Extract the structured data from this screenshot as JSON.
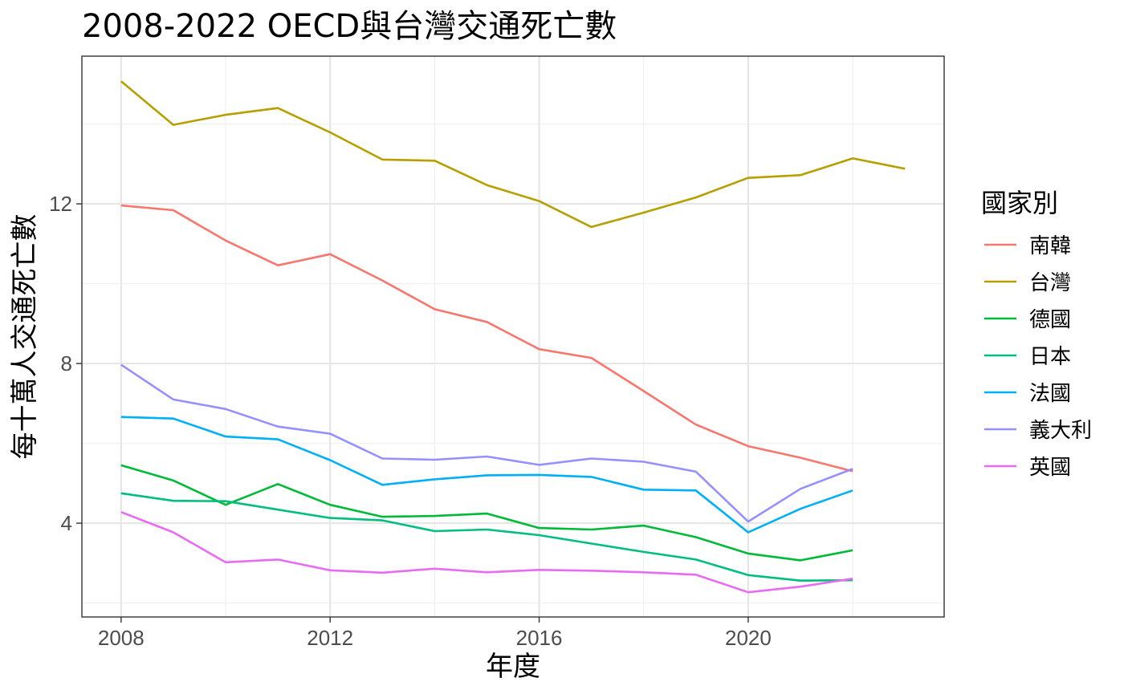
{
  "chart_data": {
    "type": "line",
    "title": "2008-2022 OECD與台灣交通死亡數",
    "xlabel": "年度",
    "ylabel": "每十萬人交通死亡數",
    "xlim": [
      2007.25,
      2023.75
    ],
    "ylim": [
      1.65,
      15.7
    ],
    "x_ticks": [
      2008,
      2012,
      2016,
      2020
    ],
    "y_ticks": [
      4,
      8,
      12
    ],
    "grid": true,
    "legend_title": "國家別",
    "legend_position": "right",
    "series": [
      {
        "name": "南韓",
        "color": "#F8766D",
        "x": [
          2008,
          2009,
          2010,
          2011,
          2012,
          2013,
          2014,
          2015,
          2016,
          2017,
          2018,
          2019,
          2020,
          2021,
          2022
        ],
        "y": [
          11.96,
          11.84,
          11.08,
          10.46,
          10.74,
          10.08,
          9.36,
          9.04,
          8.36,
          8.14,
          7.31,
          6.47,
          5.93,
          5.64,
          5.3
        ]
      },
      {
        "name": "台灣",
        "color": "#B79F00",
        "x": [
          2008,
          2009,
          2010,
          2011,
          2012,
          2013,
          2014,
          2015,
          2016,
          2017,
          2018,
          2019,
          2020,
          2021,
          2022,
          2023
        ],
        "y": [
          15.07,
          13.98,
          14.23,
          14.4,
          13.79,
          13.11,
          13.08,
          12.47,
          12.07,
          11.42,
          11.78,
          12.16,
          12.65,
          12.72,
          13.14,
          12.88
        ]
      },
      {
        "name": "德國",
        "color": "#00BA38",
        "x": [
          2008,
          2009,
          2010,
          2011,
          2012,
          2013,
          2014,
          2015,
          2016,
          2017,
          2018,
          2019,
          2020,
          2021,
          2022
        ],
        "y": [
          5.45,
          5.07,
          4.46,
          4.98,
          4.46,
          4.16,
          4.18,
          4.24,
          3.88,
          3.84,
          3.94,
          3.65,
          3.24,
          3.07,
          3.32
        ]
      },
      {
        "name": "日本",
        "color": "#00BF7D",
        "x": [
          2008,
          2009,
          2010,
          2011,
          2012,
          2013,
          2014,
          2015,
          2016,
          2017,
          2018,
          2019,
          2020,
          2021,
          2022
        ],
        "y": [
          4.75,
          4.56,
          4.55,
          4.34,
          4.13,
          4.07,
          3.8,
          3.84,
          3.7,
          3.49,
          3.28,
          3.09,
          2.7,
          2.56,
          2.57
        ]
      },
      {
        "name": "法國",
        "color": "#00B0F6",
        "x": [
          2008,
          2009,
          2010,
          2011,
          2012,
          2013,
          2014,
          2015,
          2016,
          2017,
          2018,
          2019,
          2020,
          2021,
          2022
        ],
        "y": [
          6.66,
          6.62,
          6.17,
          6.1,
          5.58,
          4.96,
          5.1,
          5.2,
          5.21,
          5.16,
          4.84,
          4.82,
          3.77,
          4.36,
          4.82
        ]
      },
      {
        "name": "義大利",
        "color": "#9590FF",
        "x": [
          2008,
          2009,
          2010,
          2011,
          2012,
          2013,
          2014,
          2015,
          2016,
          2017,
          2018,
          2019,
          2020,
          2021,
          2022
        ],
        "y": [
          7.97,
          7.1,
          6.86,
          6.42,
          6.24,
          5.62,
          5.59,
          5.67,
          5.46,
          5.62,
          5.54,
          5.29,
          4.04,
          4.86,
          5.36
        ]
      },
      {
        "name": "英國",
        "color": "#E76BF3",
        "x": [
          2008,
          2009,
          2010,
          2011,
          2012,
          2013,
          2014,
          2015,
          2016,
          2017,
          2018,
          2019,
          2020,
          2021,
          2022
        ],
        "y": [
          4.28,
          3.77,
          3.02,
          3.09,
          2.82,
          2.76,
          2.86,
          2.77,
          2.83,
          2.81,
          2.77,
          2.71,
          2.27,
          2.41,
          2.61
        ]
      }
    ]
  }
}
